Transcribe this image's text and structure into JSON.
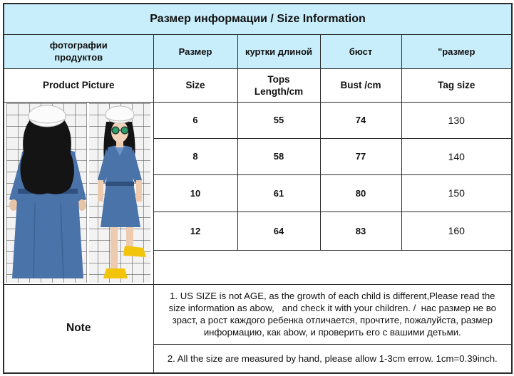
{
  "title": "Размер информации / Size Information",
  "header_ru": {
    "picture": [
      "фотографии",
      "продуктов"
    ],
    "size": "Размер",
    "length": "куртки длиной",
    "bust": "бюст",
    "tag": "\"размер"
  },
  "header_en": {
    "picture": "Product Picture",
    "size": "Size",
    "length": [
      "Tops",
      "Length/cm"
    ],
    "bust": "Bust /cm",
    "tag": "Tag size"
  },
  "rows": [
    {
      "size": "6",
      "length": "55",
      "bust": "74",
      "tag": "130"
    },
    {
      "size": "8",
      "length": "58",
      "bust": "77",
      "tag": "140"
    },
    {
      "size": "10",
      "length": "61",
      "bust": "80",
      "tag": "150"
    },
    {
      "size": "12",
      "length": "64",
      "bust": "83",
      "tag": "160"
    }
  ],
  "note": {
    "label": "Note",
    "item1_lines": [
      "1. US SIZE is not AGE, as the growth of each child is different,Please read the",
      "size information as abow,   and check it with your children. /  нас размер не во",
      "зраст, а рост каждого ребенка отличается, прочтите, пожалуйста, размер",
      "информацию, как abow, и проверить его с вашими детьми."
    ],
    "item2_lines": [
      "2. All the size are measured by hand, please allow 1-3cm errow. 1cm=0.39inch."
    ]
  },
  "colors": {
    "header_bg": "#c9eefb",
    "border": "#2b2b2b",
    "denim": "#4a73aa",
    "sneaker": "#f2c40c"
  }
}
